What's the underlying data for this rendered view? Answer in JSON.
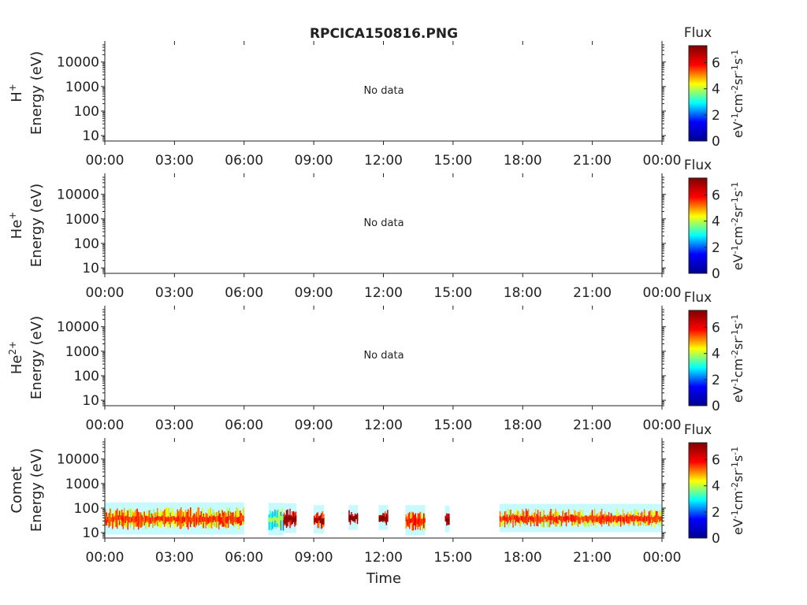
{
  "title": "RPCICA150816.PNG",
  "xlabel": "Time",
  "x_ticks": [
    "00:00",
    "03:00",
    "06:00",
    "09:00",
    "12:00",
    "15:00",
    "18:00",
    "21:00",
    "00:00"
  ],
  "y_ticks": [
    "10",
    "100",
    "1000",
    "10000"
  ],
  "colorbar": {
    "label": "Flux",
    "units_parts": [
      {
        "t": "eV",
        "sup": false
      },
      {
        "t": "-1",
        "sup": true
      },
      {
        "t": "cm",
        "sup": false
      },
      {
        "t": "-2",
        "sup": true
      },
      {
        "t": "sr",
        "sup": false
      },
      {
        "t": "-1",
        "sup": true
      },
      {
        "t": "s",
        "sup": false
      },
      {
        "t": "-1",
        "sup": true
      }
    ],
    "ticks": [
      "0",
      "2",
      "4",
      "6"
    ],
    "range": [
      0,
      7.3
    ],
    "colormap": [
      "#00008f",
      "#0000ff",
      "#00ffff",
      "#ffff00",
      "#ff0000",
      "#800000"
    ]
  },
  "chart_data": [
    {
      "type": "heatmap",
      "species": "H",
      "species_sup": "+",
      "ylabel": "Energy (eV)",
      "message": "No data",
      "x_range_hours": [
        0,
        24
      ],
      "y_range_ev": [
        6,
        50000
      ],
      "y_scale": "log"
    },
    {
      "type": "heatmap",
      "species": "He",
      "species_sup": "+",
      "ylabel": "Energy (eV)",
      "message": "No data",
      "x_range_hours": [
        0,
        24
      ],
      "y_range_ev": [
        6,
        50000
      ],
      "y_scale": "log"
    },
    {
      "type": "heatmap",
      "species": "He",
      "species_sup": "2+",
      "ylabel": "Energy (eV)",
      "message": "No data",
      "x_range_hours": [
        0,
        24
      ],
      "y_range_ev": [
        6,
        50000
      ],
      "y_scale": "log"
    },
    {
      "type": "heatmap",
      "species": "Comet",
      "species_sup": "",
      "ylabel": "Energy (eV)",
      "message": "",
      "x_range_hours": [
        0,
        24
      ],
      "y_range_ev": [
        6,
        50000
      ],
      "y_scale": "log",
      "segments": [
        {
          "start_h": 0.0,
          "end_h": 6.0,
          "e_low": 13,
          "e_high": 110,
          "flux": 5.2
        },
        {
          "start_h": 7.05,
          "end_h": 7.7,
          "e_low": 12,
          "e_high": 105,
          "flux": 3.6
        },
        {
          "start_h": 7.7,
          "end_h": 8.25,
          "e_low": 15,
          "e_high": 100,
          "flux": 6.9
        },
        {
          "start_h": 9.0,
          "end_h": 9.45,
          "e_low": 14,
          "e_high": 85,
          "flux": 6.6
        },
        {
          "start_h": 10.5,
          "end_h": 10.9,
          "e_low": 20,
          "e_high": 85,
          "flux": 7.0
        },
        {
          "start_h": 11.8,
          "end_h": 12.2,
          "e_low": 20,
          "e_high": 85,
          "flux": 6.9
        },
        {
          "start_h": 12.95,
          "end_h": 13.8,
          "e_low": 12,
          "e_high": 85,
          "flux": 5.4
        },
        {
          "start_h": 14.65,
          "end_h": 14.85,
          "e_low": 16,
          "e_high": 80,
          "flux": 6.8
        },
        {
          "start_h": 17.0,
          "end_h": 24.0,
          "e_low": 16,
          "e_high": 95,
          "flux": 5.3
        }
      ]
    }
  ]
}
